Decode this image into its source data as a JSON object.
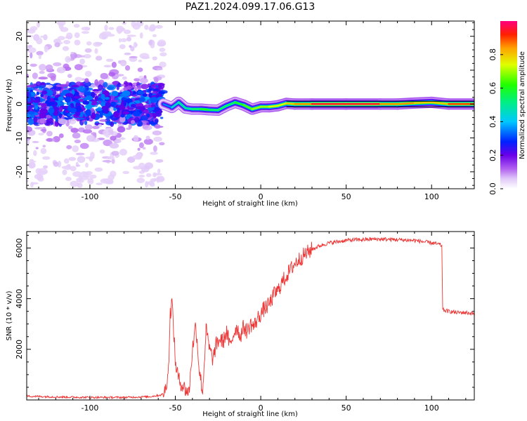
{
  "title": "PAZ1.2024.099.17.06.G13",
  "chart_data": [
    {
      "type": "heatmap",
      "xlabel": "Height of straight line (km)",
      "ylabel": "Frequency (Hz)",
      "xlim": [
        -137,
        125
      ],
      "ylim": [
        -25,
        24.5
      ],
      "xticks": [
        "-100",
        "-50",
        "0",
        "50",
        "100"
      ],
      "xtick_values": [
        -100,
        -50,
        0,
        50,
        100
      ],
      "yticks": [
        "-20",
        "-10",
        "0",
        "10",
        "20"
      ],
      "ytick_values": [
        -20,
        -10,
        0,
        10,
        20
      ],
      "colorscale": "rainbow",
      "colorbar": {
        "label": "Normalized spectral amplitude",
        "ticks": [
          "0.0",
          "0.2",
          "0.4",
          "0.6",
          "0.8"
        ],
        "tick_values": [
          0.0,
          0.2,
          0.4,
          0.6,
          0.8
        ],
        "range": [
          0,
          1
        ]
      },
      "ridge_track": [
        {
          "x": -57,
          "freq": 0.0,
          "amp": 0.35
        },
        {
          "x": -52,
          "freq": -1.0,
          "amp": 0.45
        },
        {
          "x": -48,
          "freq": 0.5,
          "amp": 0.5
        },
        {
          "x": -44,
          "freq": -1.2,
          "amp": 0.5
        },
        {
          "x": -40,
          "freq": -1.5,
          "amp": 0.55
        },
        {
          "x": -35,
          "freq": -1.5,
          "amp": 0.6
        },
        {
          "x": -30,
          "freq": -1.7,
          "amp": 0.6
        },
        {
          "x": -25,
          "freq": -1.8,
          "amp": 0.55
        },
        {
          "x": -20,
          "freq": -0.5,
          "amp": 0.55
        },
        {
          "x": -15,
          "freq": 0.5,
          "amp": 0.6
        },
        {
          "x": -10,
          "freq": -0.3,
          "amp": 0.65
        },
        {
          "x": -5,
          "freq": -1.5,
          "amp": 0.7
        },
        {
          "x": 0,
          "freq": -0.8,
          "amp": 0.7
        },
        {
          "x": 5,
          "freq": -0.8,
          "amp": 0.75
        },
        {
          "x": 10,
          "freq": -0.5,
          "amp": 0.75
        },
        {
          "x": 15,
          "freq": 0.2,
          "amp": 0.8
        },
        {
          "x": 20,
          "freq": 0.0,
          "amp": 0.85
        },
        {
          "x": 30,
          "freq": 0.0,
          "amp": 0.95
        },
        {
          "x": 50,
          "freq": 0.0,
          "amp": 1.0
        },
        {
          "x": 70,
          "freq": 0.0,
          "amp": 0.95
        },
        {
          "x": 80,
          "freq": 0.0,
          "amp": 0.85
        },
        {
          "x": 90,
          "freq": 0.3,
          "amp": 0.85
        },
        {
          "x": 100,
          "freq": 0.5,
          "amp": 0.8
        },
        {
          "x": 110,
          "freq": 0.0,
          "amp": 0.9
        },
        {
          "x": 125,
          "freq": 0.0,
          "amp": 0.9
        }
      ],
      "noise_region": {
        "x_range": [
          -137,
          -57
        ],
        "freq_range": [
          -25,
          24.5
        ]
      }
    },
    {
      "type": "line",
      "xlabel": "Height of straight line (km)",
      "ylabel": "SNR (10 * v/v)",
      "xlim": [
        -137,
        125
      ],
      "ylim": [
        0,
        6650
      ],
      "xticks": [
        "-100",
        "-50",
        "0",
        "50",
        "100"
      ],
      "xtick_values": [
        -100,
        -50,
        0,
        50,
        100
      ],
      "yticks": [
        "2000",
        "4000",
        "6000"
      ],
      "ytick_values": [
        2000,
        4000,
        6000
      ],
      "series": [
        {
          "color": "#ee3333",
          "x": [
            -137,
            -120,
            -100,
            -80,
            -65,
            -58,
            -56,
            -54,
            -53,
            -52,
            -51,
            -50,
            -48,
            -46,
            -44,
            -42,
            -40,
            -38,
            -36,
            -34,
            -32,
            -30,
            -28,
            -26,
            -24,
            -22,
            -20,
            -18,
            -16,
            -14,
            -12,
            -10,
            -8,
            -6,
            -4,
            -2,
            0,
            2,
            4,
            6,
            8,
            10,
            12,
            14,
            16,
            18,
            20,
            25,
            30,
            35,
            40,
            45,
            50,
            55,
            60,
            65,
            70,
            75,
            80,
            85,
            90,
            95,
            100,
            104,
            106,
            106.5,
            110,
            115,
            120,
            125
          ],
          "values": [
            150,
            120,
            100,
            100,
            130,
            200,
            350,
            1200,
            3400,
            3900,
            2800,
            1500,
            800,
            600,
            400,
            300,
            2000,
            3000,
            1200,
            300,
            2800,
            2000,
            1600,
            2200,
            2400,
            2300,
            2700,
            2100,
            2600,
            2900,
            2500,
            2900,
            2700,
            3000,
            2900,
            3200,
            3400,
            3600,
            3700,
            3900,
            4200,
            4300,
            4600,
            4800,
            5000,
            5200,
            5400,
            5700,
            5950,
            6100,
            6200,
            6250,
            6300,
            6320,
            6330,
            6350,
            6350,
            6340,
            6330,
            6310,
            6300,
            6250,
            6200,
            6150,
            6100,
            3550,
            3500,
            3450,
            3450,
            3400
          ]
        }
      ]
    }
  ]
}
